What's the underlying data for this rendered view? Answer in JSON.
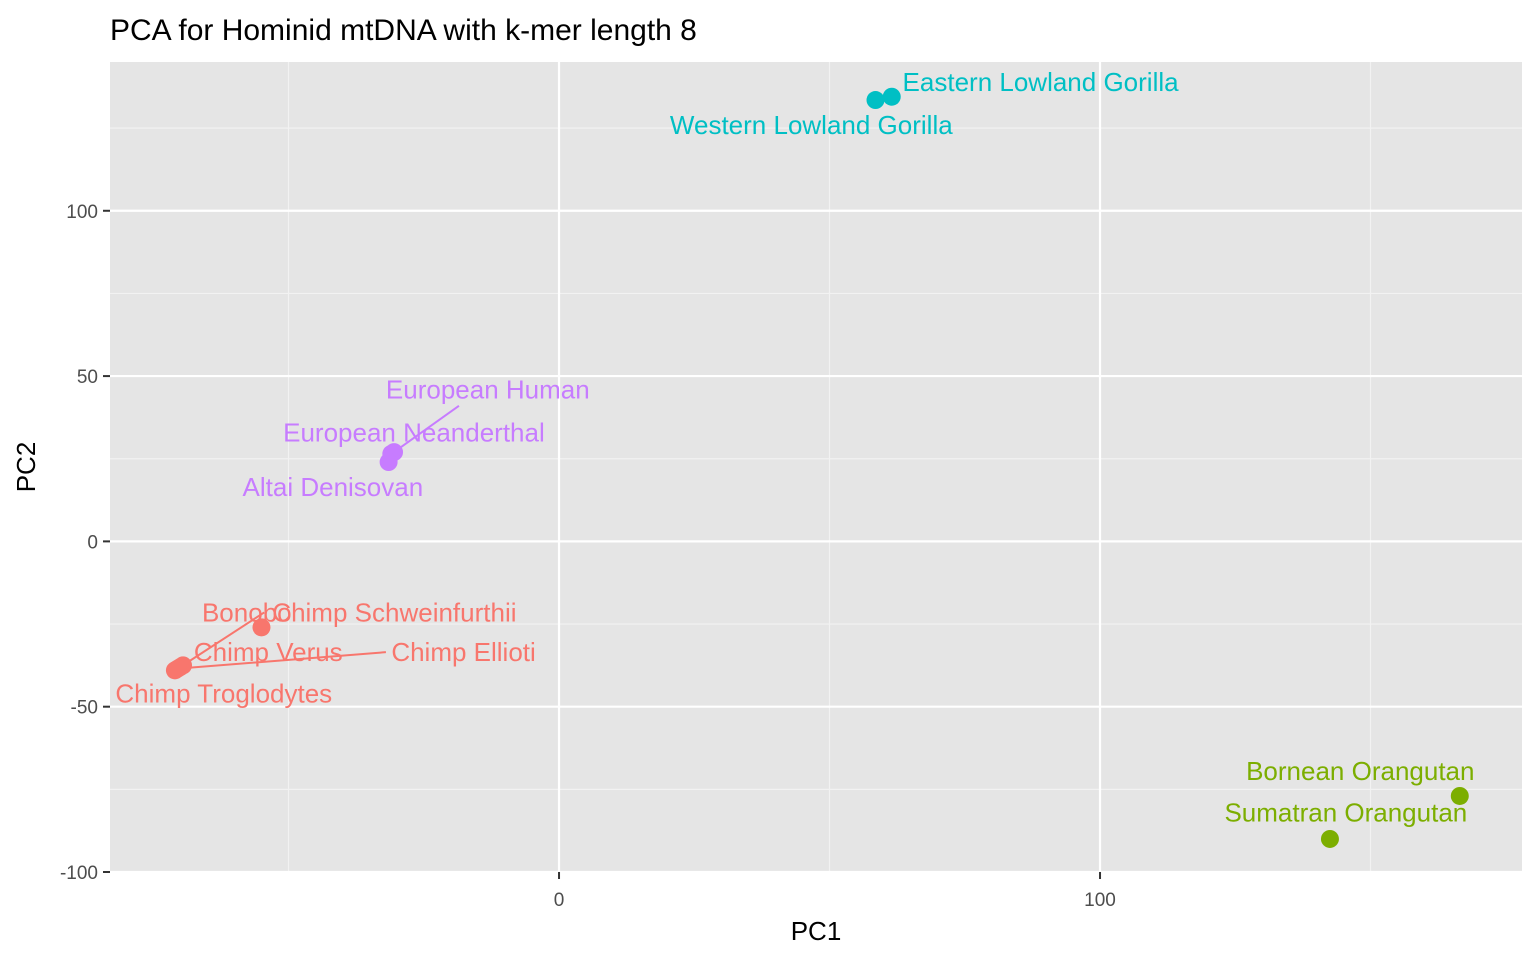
{
  "chart_data": {
    "type": "scatter",
    "title": "PCA for Hominid mtDNA with k-mer length 8",
    "xlabel": "PC1",
    "ylabel": "PC2",
    "xlim": [
      -83,
      178
    ],
    "ylim": [
      -100,
      145
    ],
    "xticks": [
      {
        "value": 0,
        "label": "0"
      },
      {
        "value": 100,
        "label": "100"
      }
    ],
    "x_minor_gridlines": [
      -50,
      50,
      150
    ],
    "yticks": [
      {
        "value": -100,
        "label": "-100"
      },
      {
        "value": -50,
        "label": "-50"
      },
      {
        "value": 0,
        "label": "0"
      },
      {
        "value": 50,
        "label": "50"
      },
      {
        "value": 100,
        "label": "100"
      }
    ],
    "y_minor_gridlines": [
      -75,
      -25,
      25,
      75,
      125
    ],
    "grid": true,
    "legend": "none",
    "groups": [
      {
        "color": "#F8766D",
        "points": [
          {
            "label": "Bonobo",
            "x": -55,
            "y": -26,
            "label_x": -66,
            "label_y": -21.5,
            "leader": false
          },
          {
            "label": "Chimp Schweinfurthii",
            "x": -70,
            "y": -38,
            "label_x": -53,
            "label_y": -21.5,
            "leader": true,
            "leader_end_x": -54.5,
            "leader_end_y": -21.5
          },
          {
            "label": "Chimp Verus",
            "x": -69.5,
            "y": -37.5,
            "label_x": -67.5,
            "label_y": -33.5,
            "leader": false
          },
          {
            "label": "Chimp Ellioti",
            "x": -70.5,
            "y": -38.5,
            "label_x": -31,
            "label_y": -33.5,
            "leader": true,
            "leader_end_x": -32,
            "leader_end_y": -33.5
          },
          {
            "label": "Chimp Troglodytes",
            "x": -71,
            "y": -39,
            "label_x": -82,
            "label_y": -46,
            "leader": false
          }
        ]
      },
      {
        "color": "#C77CFF",
        "points": [
          {
            "label": "European Human",
            "x": -30.5,
            "y": 27,
            "label_x": -32,
            "label_y": 46,
            "leader": true,
            "leader_end_x": -18.5,
            "leader_end_y": 41
          },
          {
            "label": "European Neanderthal",
            "x": -31,
            "y": 26.5,
            "label_x": -51,
            "label_y": 33,
            "leader": false
          },
          {
            "label": "Altai Denisovan",
            "x": -31.5,
            "y": 24,
            "label_x": -58.5,
            "label_y": 16.5,
            "leader": false
          }
        ]
      },
      {
        "color": "#00BFC4",
        "points": [
          {
            "label": "Eastern Lowland Gorilla",
            "x": 61.5,
            "y": 134.5,
            "label_x": 63.5,
            "label_y": 139,
            "leader": false
          },
          {
            "label": "Western Lowland Gorilla",
            "x": 58.5,
            "y": 133.5,
            "label_x": 20.5,
            "label_y": 126,
            "leader": false
          }
        ]
      },
      {
        "color": "#7CAE00",
        "points": [
          {
            "label": "Bornean Orangutan",
            "x": 166.5,
            "y": -77,
            "label_x": 127,
            "label_y": -69.5,
            "leader": false
          },
          {
            "label": "Sumatran Orangutan",
            "x": 142.5,
            "y": -90,
            "label_x": 123,
            "label_y": -82,
            "leader": false
          }
        ]
      }
    ]
  }
}
